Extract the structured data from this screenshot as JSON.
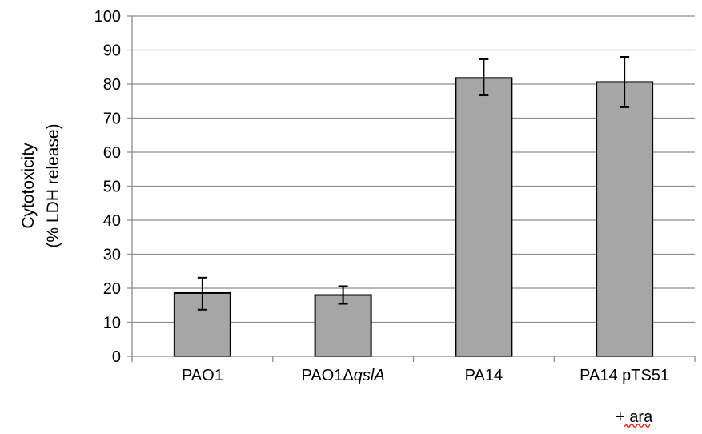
{
  "chart_data": {
    "type": "bar",
    "categories": [
      {
        "name": "PAO1",
        "parts": [
          {
            "text": "PAO1",
            "italic": false
          }
        ]
      },
      {
        "name": "PAO1ΔqslA",
        "parts": [
          {
            "text": "PAO1Δ",
            "italic": false
          },
          {
            "text": "qslA",
            "italic": true
          }
        ]
      },
      {
        "name": "PA14",
        "parts": [
          {
            "text": "PA14",
            "italic": false
          }
        ]
      },
      {
        "name": "PA14 pTS51 + ara",
        "parts": [
          {
            "text": "PA14 pTS51",
            "italic": false
          }
        ],
        "second_line": "+ ara"
      }
    ],
    "values": [
      18.6,
      18.0,
      81.8,
      80.6
    ],
    "error_low": [
      13.7,
      15.4,
      76.7,
      73.2
    ],
    "error_high": [
      23.1,
      20.6,
      87.3,
      88.0
    ],
    "ylabel_lines": [
      "Cytotoxicity",
      "(% LDH release)"
    ],
    "xlabel": "",
    "title": "",
    "ylim": [
      0,
      100
    ],
    "yticks": [
      0,
      10,
      20,
      30,
      40,
      50,
      60,
      70,
      80,
      90,
      100
    ],
    "grid": true,
    "bar_color": "#a6a6a6",
    "bar_edge_color": "#000000",
    "grid_color": "#8c8c8c",
    "error_color": "#000000",
    "squiggle_color": "#e0302a"
  }
}
